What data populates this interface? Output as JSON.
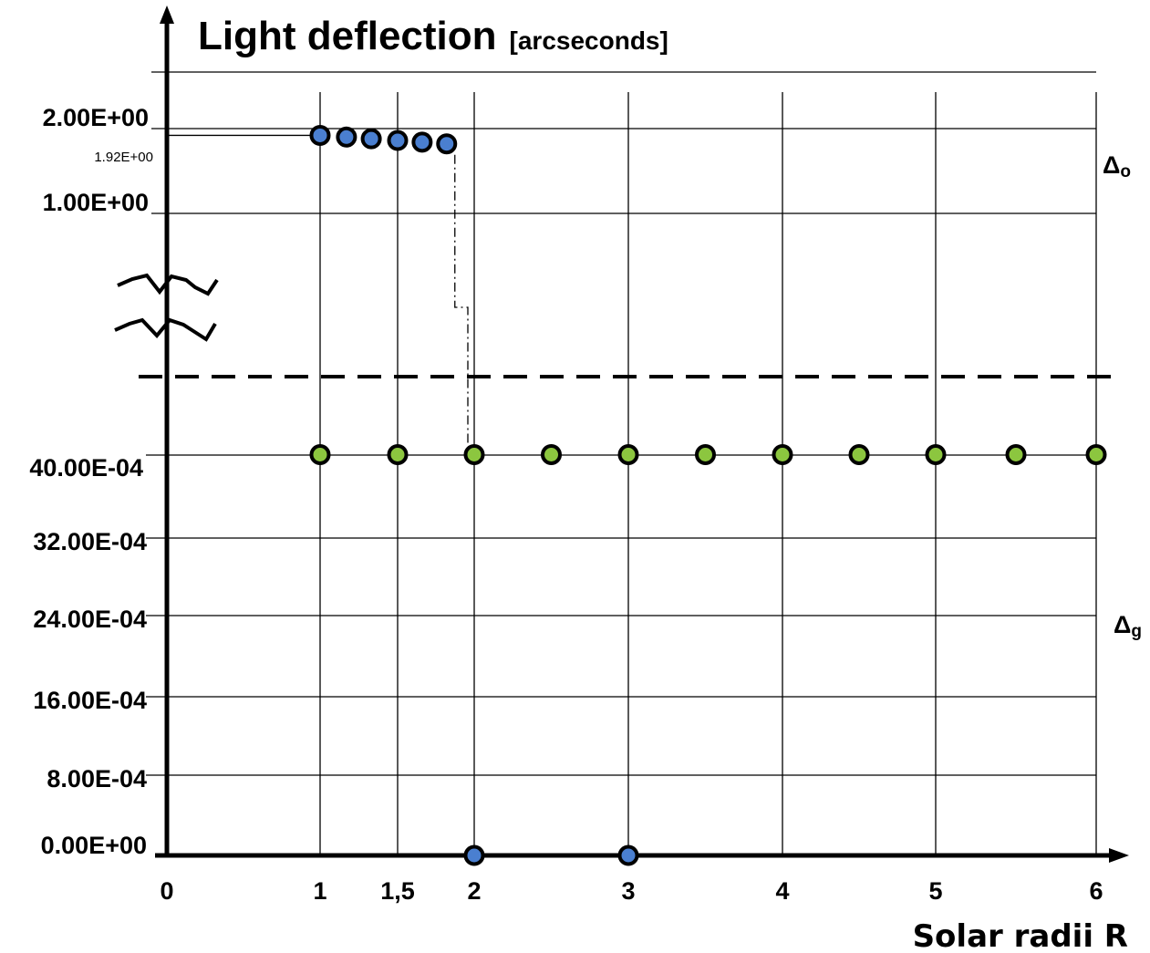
{
  "chart_data": {
    "type": "scatter",
    "title": "Light deflection",
    "title_unit": "[arcseconds]",
    "xlabel": "Solar radii R",
    "x_ticks": [
      "0",
      "1",
      "1,5",
      "2",
      "3",
      "4",
      "5",
      "6"
    ],
    "axis_break": true,
    "upper_y_ticks": [
      "2.00E+00",
      "1.00E+00"
    ],
    "upper_annotation": "1.92E+00",
    "lower_y_ticks": [
      "40.00E-04",
      "32.00E-04",
      "24.00E-04",
      "16.00E-04",
      "8.00E-04",
      "0.00E+00"
    ],
    "series": [
      {
        "name_symbol": "Δ",
        "name_subscript": "o",
        "color": "#4a7fd0",
        "points": [
          {
            "x": 1.0,
            "y": 1.92
          },
          {
            "x": 1.17,
            "y": 1.9
          },
          {
            "x": 1.33,
            "y": 1.88
          },
          {
            "x": 1.5,
            "y": 1.86
          },
          {
            "x": 1.66,
            "y": 1.84
          },
          {
            "x": 1.82,
            "y": 1.82
          },
          {
            "x": 2.0,
            "y": 0.0
          },
          {
            "x": 3.0,
            "y": 0.0
          }
        ]
      },
      {
        "name_symbol": "Δ",
        "name_subscript": "g",
        "color": "#8cc63f",
        "points": [
          {
            "x": 1.0,
            "y": 0.004
          },
          {
            "x": 1.5,
            "y": 0.004
          },
          {
            "x": 2.0,
            "y": 0.004
          },
          {
            "x": 2.5,
            "y": 0.004
          },
          {
            "x": 3.0,
            "y": 0.004
          },
          {
            "x": 3.5,
            "y": 0.004
          },
          {
            "x": 4.0,
            "y": 0.004
          },
          {
            "x": 4.5,
            "y": 0.004
          },
          {
            "x": 5.0,
            "y": 0.004
          },
          {
            "x": 5.5,
            "y": 0.004
          },
          {
            "x": 6.0,
            "y": 0.004
          }
        ]
      }
    ]
  }
}
